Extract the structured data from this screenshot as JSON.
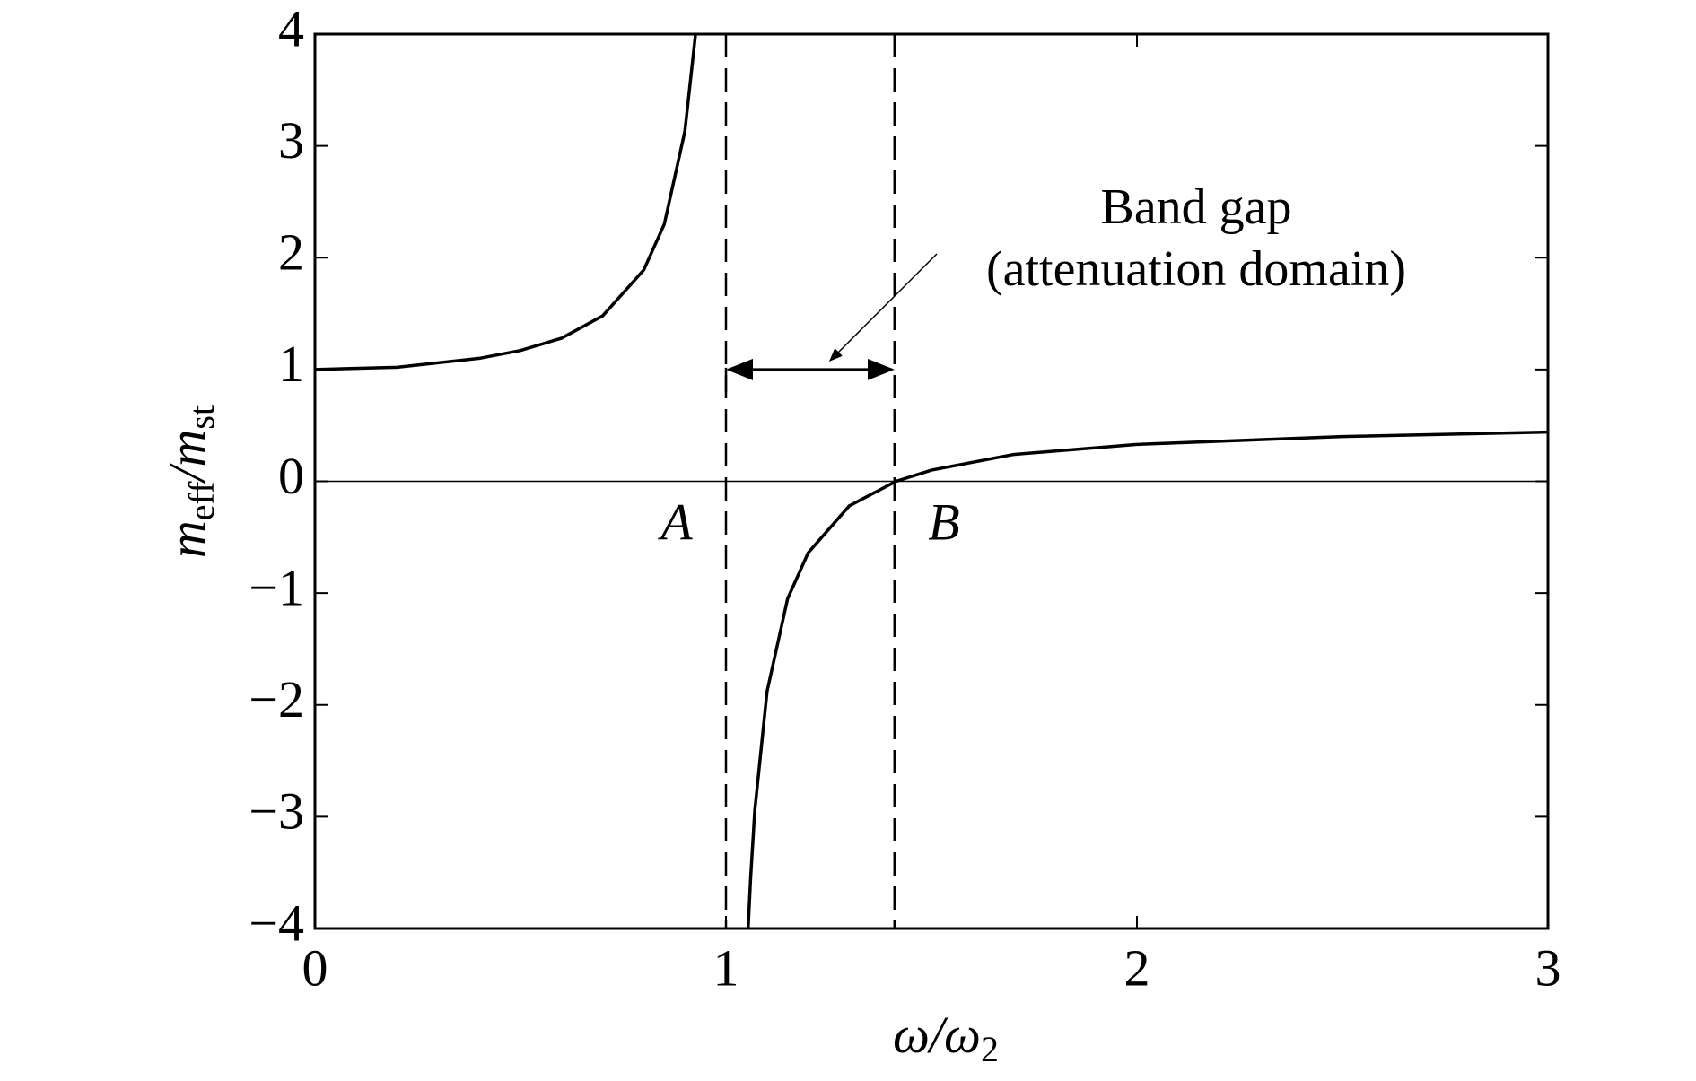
{
  "chart_data": {
    "type": "line",
    "x": [
      0,
      0.2,
      0.4,
      0.5,
      0.6,
      0.7,
      0.8,
      0.85,
      0.9,
      0.926,
      1,
      1.054,
      1.06,
      1.07,
      1.1,
      1.15,
      1.2,
      1.3,
      1.414,
      1.5,
      1.7,
      2,
      2.5,
      3
    ],
    "series": [
      {
        "name": "m_eff/m_st",
        "color": "#000000",
        "values": [
          1,
          1.02,
          1.1,
          1.17,
          1.28,
          1.48,
          1.89,
          2.3,
          3.13,
          4,
          null,
          -4,
          -3.55,
          -2.95,
          -1.88,
          -1.05,
          -0.64,
          -0.22,
          0,
          0.1,
          0.24,
          0.33,
          0.4,
          0.44
        ]
      }
    ],
    "xlabel": [
      "ω/ω",
      "2"
    ],
    "ylabel": [
      "m",
      "eff",
      "/m",
      "st"
    ],
    "xlim": [
      0,
      3
    ],
    "ylim": [
      -4,
      4
    ],
    "xticks": [
      0,
      1,
      2,
      3
    ],
    "yticks": [
      {
        "value": -4,
        "label": "−4"
      },
      {
        "value": -3,
        "label": "−3"
      },
      {
        "value": -2,
        "label": "−2"
      },
      {
        "value": -1,
        "label": "−1"
      },
      0,
      1,
      2,
      3,
      4
    ],
    "zero_line": true,
    "vlines": [
      1,
      1.41
    ],
    "gap_arrow_y": 1,
    "annotation": [
      "Band gap",
      "(attenuation domain)"
    ],
    "point_labels": [
      "A",
      "B"
    ]
  }
}
